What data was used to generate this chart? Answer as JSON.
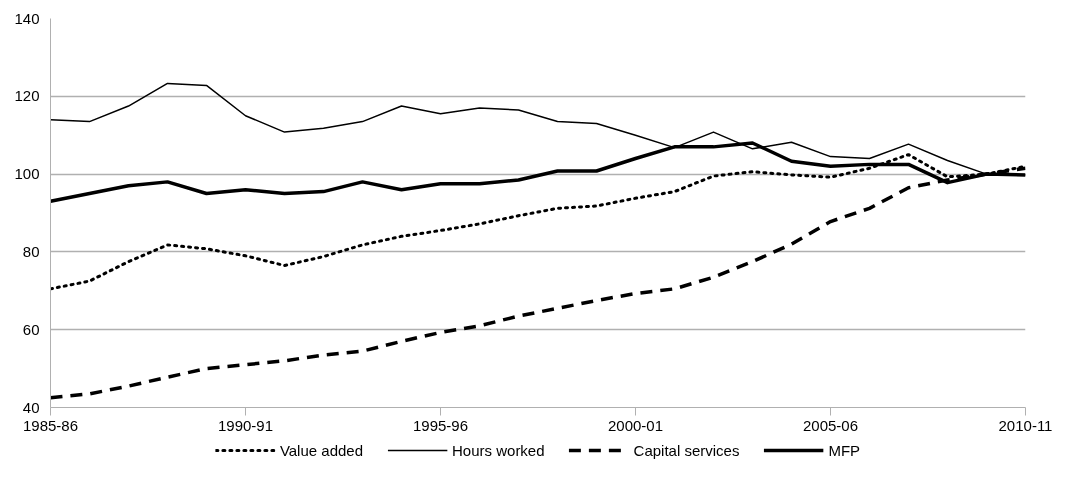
{
  "chart_data": {
    "type": "line",
    "categories": [
      "1985-86",
      null,
      null,
      null,
      null,
      "1990-91",
      null,
      null,
      null,
      null,
      "1995-96",
      null,
      null,
      null,
      null,
      "2000-01",
      null,
      null,
      null,
      null,
      "2005-06",
      null,
      null,
      null,
      null,
      "2010-11"
    ],
    "series": [
      {
        "name": "Value added",
        "color": "#000000",
        "line_style": "dotted",
        "values": [
          70.5,
          72.5,
          77.5,
          81.8,
          80.8,
          79,
          76.5,
          78.8,
          81.8,
          84,
          85.5,
          87.2,
          89.3,
          91.2,
          91.8,
          93.8,
          95.5,
          99.5,
          100.6,
          99.8,
          99.2,
          101.5,
          105,
          99.3,
          100,
          102
        ]
      },
      {
        "name": "Hours worked",
        "color": "#000000",
        "line_style": "solid",
        "values": [
          114,
          113.5,
          117.5,
          123.3,
          122.8,
          115,
          110.8,
          111.8,
          113.5,
          117.5,
          115.5,
          117,
          116.5,
          113.5,
          113,
          110,
          106.8,
          110.8,
          106.5,
          108.2,
          104.5,
          104,
          107.7,
          103.5,
          100,
          99.8
        ]
      },
      {
        "name": "Capital services",
        "color": "#000000",
        "line_style": "dashed",
        "values": [
          42.5,
          43.5,
          45.5,
          47.8,
          50,
          51,
          52,
          53.5,
          54.5,
          57,
          59.3,
          61,
          63.5,
          65.5,
          67.5,
          69.3,
          70.5,
          73.5,
          77.5,
          82,
          87.8,
          91.2,
          96.5,
          98.5,
          100,
          101.5
        ]
      },
      {
        "name": "MFP",
        "color": "#000000",
        "line_style": "solid",
        "values": [
          93,
          95,
          97,
          98,
          95,
          96,
          95,
          95.5,
          98,
          96,
          97.5,
          97.5,
          98.5,
          100.8,
          100.8,
          104,
          107,
          107,
          108,
          103.3,
          102,
          102.5,
          102.5,
          97.8,
          100,
          99.8
        ]
      }
    ],
    "ylim": [
      40,
      140
    ],
    "yticks": [
      40,
      60,
      80,
      100,
      120,
      140
    ],
    "grid": "y",
    "legend": "bottom",
    "marker": "none"
  }
}
